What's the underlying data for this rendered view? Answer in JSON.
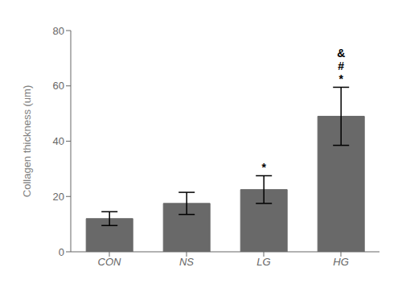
{
  "chart_data": {
    "type": "bar",
    "categories": [
      "CON",
      "NS",
      "LG",
      "HG"
    ],
    "values": [
      12.0,
      17.5,
      22.5,
      49.0
    ],
    "errors": [
      2.5,
      4.0,
      5.0,
      10.5
    ],
    "color": "#696969",
    "ylabel": "Collagen thickness (um)",
    "ylim": [
      0,
      80
    ],
    "yticks": [
      0,
      20,
      40,
      60,
      80
    ],
    "grid": false,
    "annotations": [
      {
        "category": "LG",
        "text": "*"
      },
      {
        "category": "HG",
        "text": "*"
      },
      {
        "category": "HG",
        "text": "#"
      },
      {
        "category": "HG",
        "text": "&"
      }
    ]
  }
}
